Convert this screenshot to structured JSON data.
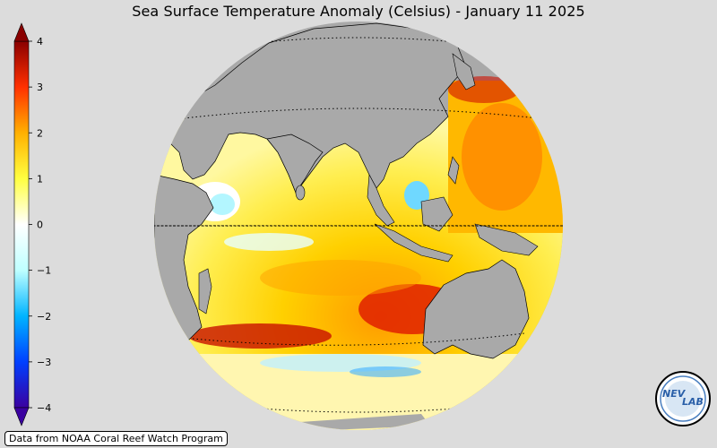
{
  "title": "Sea Surface Temperature Anomaly (Celsius) - January 11 2025",
  "credit": "Data from NOAA Coral Reef Watch Program",
  "colorbar": {
    "min": -4,
    "max": 4,
    "ticks": [
      {
        "value": 4,
        "label": "4"
      },
      {
        "value": 3,
        "label": "3"
      },
      {
        "value": 2,
        "label": "2"
      },
      {
        "value": 1,
        "label": "1"
      },
      {
        "value": 0,
        "label": "0"
      },
      {
        "value": -1,
        "label": "−1"
      },
      {
        "value": -2,
        "label": "−2"
      },
      {
        "value": -3,
        "label": "−3"
      },
      {
        "value": -4,
        "label": "−4"
      }
    ],
    "colors": [
      "#3a00a0",
      "#0040ff",
      "#00b4ff",
      "#bfffff",
      "#ffffff",
      "#ffff40",
      "#ffb000",
      "#ff3000",
      "#8a0000"
    ]
  },
  "map": {
    "projection": "orthographic",
    "ocean_colors": [
      "#ffffff",
      "#ffff70",
      "#ffd000",
      "#ff9000",
      "#e82000"
    ],
    "land_color": "#a9a9a9",
    "graticule": "dotted"
  },
  "logo": {
    "text_left": "NEV",
    "text_right": "LAB"
  }
}
